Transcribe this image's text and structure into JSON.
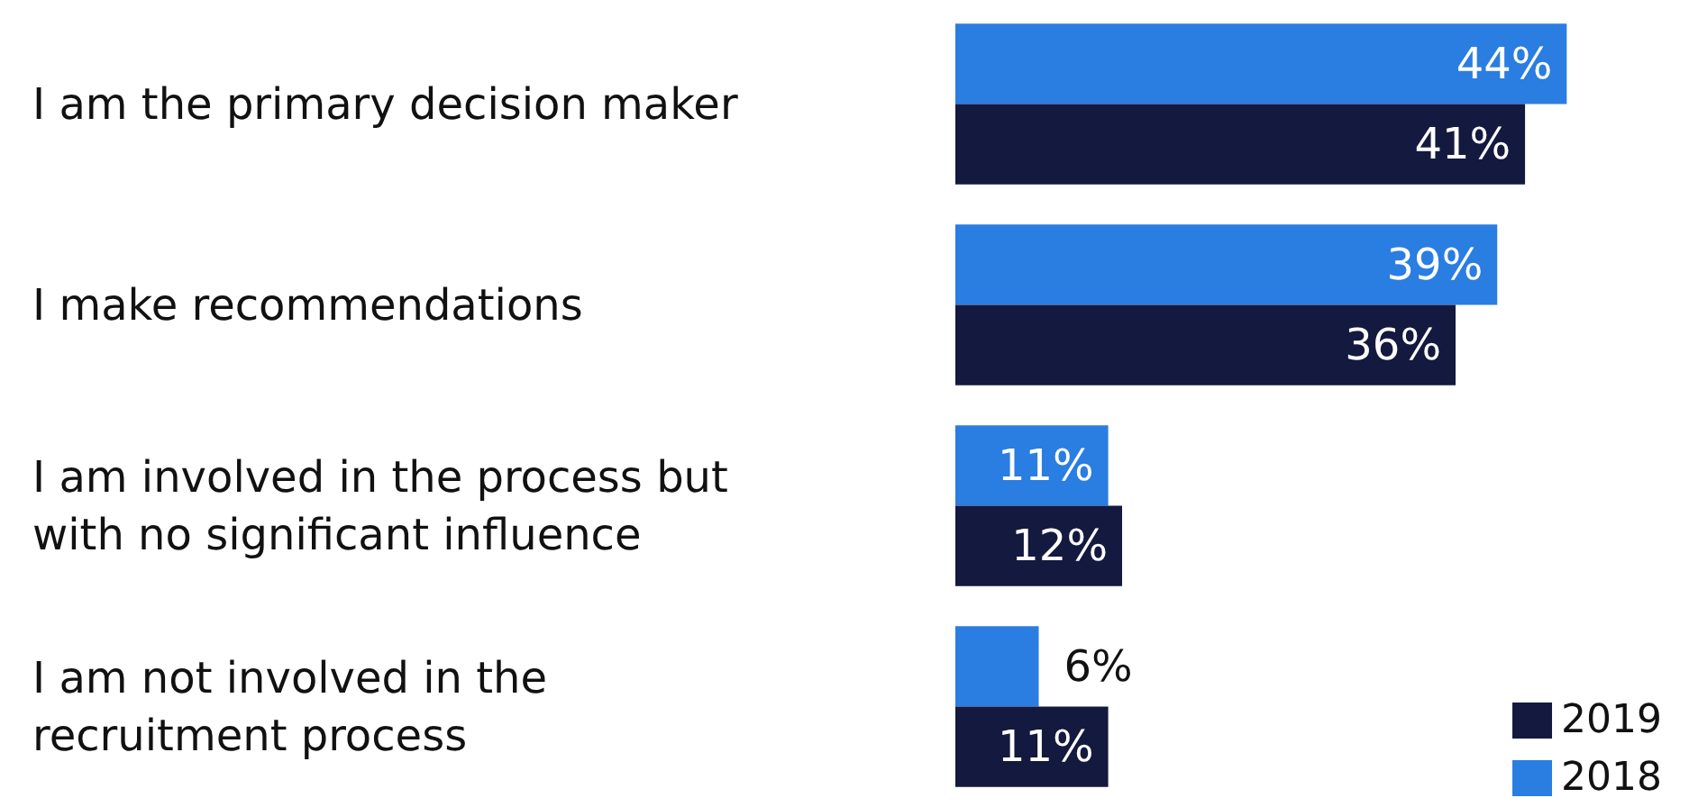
{
  "chart_data": {
    "type": "bar",
    "orientation": "horizontal",
    "categories": [
      "I am the primary decision maker",
      "I make recommendations",
      "I am involved in the process but with no significant influence",
      "I am not involved in the recruitment process"
    ],
    "series": [
      {
        "name": "2018",
        "color": "#2a7de1",
        "values": [
          44,
          39,
          11,
          6
        ],
        "value_labels": [
          "44%",
          "39%",
          "11%",
          "6%"
        ]
      },
      {
        "name": "2019",
        "color": "#14193f",
        "values": [
          41,
          36,
          12,
          11
        ],
        "value_labels": [
          "41%",
          "36%",
          "12%",
          "11%"
        ]
      }
    ],
    "legend": "bottom right"
  }
}
